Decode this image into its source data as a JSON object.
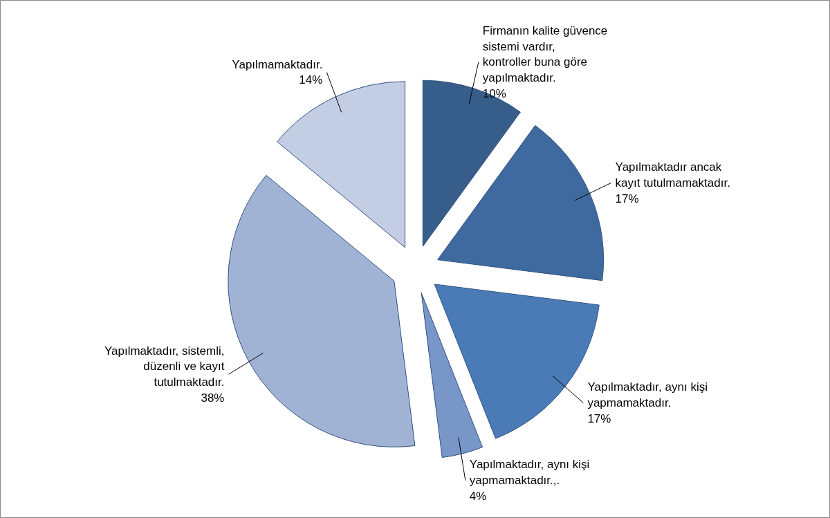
{
  "chart_data": {
    "type": "pie",
    "categories": [
      "Firmanın kalite güvence sistemi vardır, kontroller buna göre yapılmaktadır.",
      "Yapılmaktadır ancak kayıt tutulmamaktadır.",
      "Yapılmaktadır, aynı kişi yapmamaktadır.",
      "Yapılmaktadır, aynı kişi yapmamaktadır.,.",
      "Yapılmaktadır, sistemli, düzenli ve kayıt tutulmaktadır.",
      "Yapılmamaktadır."
    ],
    "values": [
      10,
      17,
      17,
      4,
      38,
      14
    ],
    "value_labels": [
      "10%",
      "17%",
      "17%",
      "4%",
      "38%",
      "14%"
    ],
    "colors": [
      "#375d8b",
      "#3f6a9f",
      "#4a7bb6",
      "#7896c8",
      "#a1b3d5",
      "#c3cde3"
    ]
  }
}
